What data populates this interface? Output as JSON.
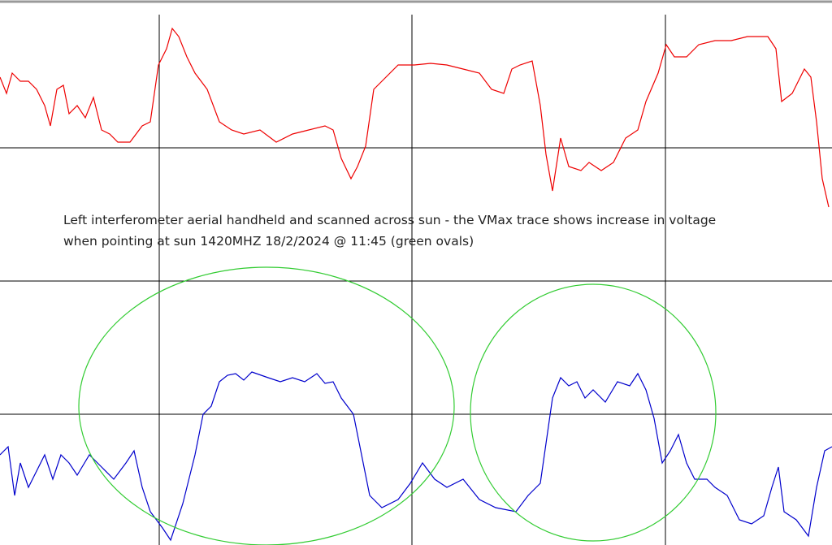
{
  "annotation": {
    "lines": [
      "Left interferometer aerial handheld and scanned across sun -  the VMax trace shows increase in voltage",
      "when pointing at sun 1420MHZ 18/2/2024 @ 11:45 (green ovals)"
    ]
  }
}
